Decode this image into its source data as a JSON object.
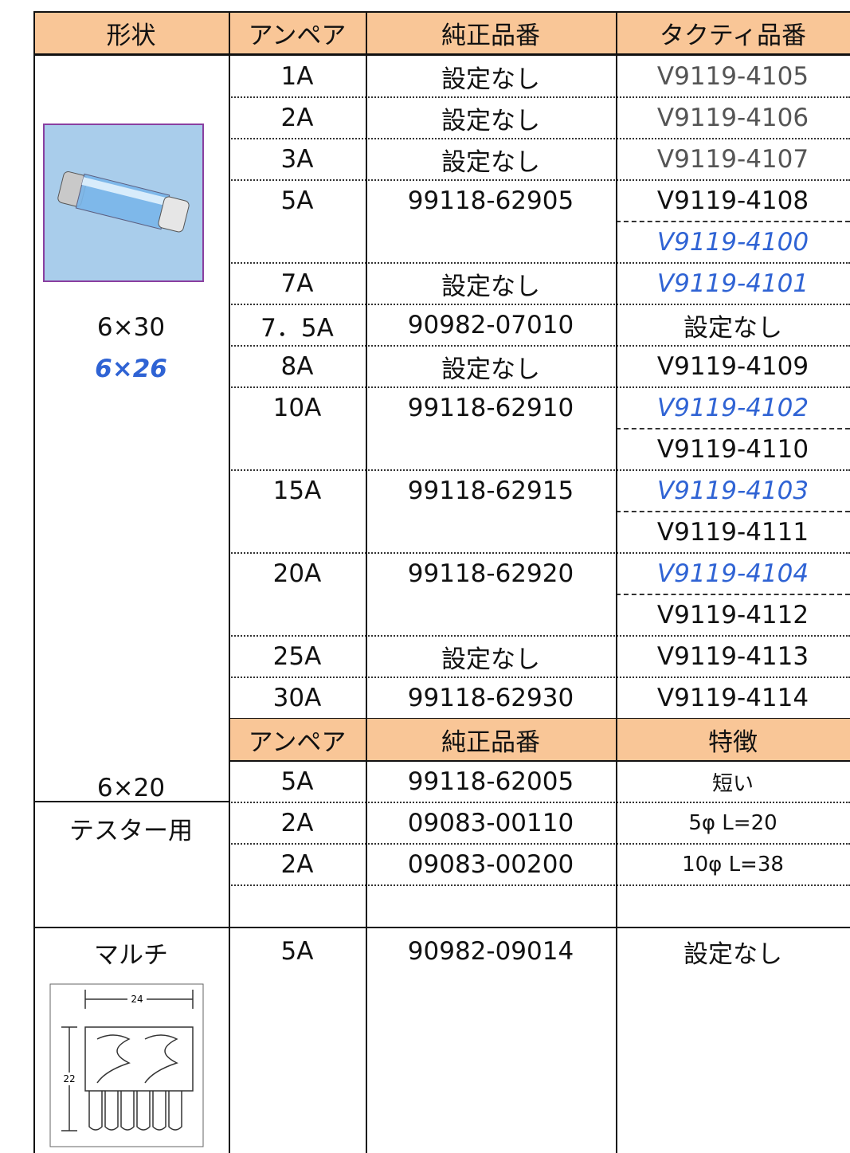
{
  "header": [
    "形状",
    "アンペア",
    "純正品番",
    "タクティ品番"
  ],
  "rows": [
    {
      "amp": "1A",
      "oem": "設定なし",
      "parts": [
        {
          "text": "V9119-4105",
          "color": "#555555"
        }
      ]
    },
    {
      "amp": "2A",
      "oem": "設定なし",
      "parts": [
        {
          "text": "V9119-4106",
          "color": "#555555"
        }
      ]
    },
    {
      "amp": "3A",
      "oem": "設定なし",
      "parts": [
        {
          "text": "V9119-4107",
          "color": "#555555"
        }
      ]
    },
    {
      "amp": "5A",
      "oem": "99118-62905",
      "parts": [
        {
          "text": "V9119-4108"
        },
        {
          "text": "V9119-4100",
          "color": "#2f63d4",
          "italic": true
        }
      ]
    },
    {
      "amp": "7A",
      "oem": "設定なし",
      "parts": [
        {
          "text": "V9119-4101",
          "color": "#2f63d4",
          "italic": true
        }
      ]
    },
    {
      "amp": "7．5A",
      "oem": "90982-07010",
      "parts": [
        {
          "text": "設定なし"
        }
      ]
    },
    {
      "amp": "8A",
      "oem": "設定なし",
      "parts": [
        {
          "text": "V9119-4109"
        }
      ]
    },
    {
      "amp": "10A",
      "oem": "99118-62910",
      "parts": [
        {
          "text": "V9119-4102",
          "color": "#2f63d4",
          "italic": true
        },
        {
          "text": "V9119-4110"
        }
      ]
    },
    {
      "amp": "15A",
      "oem": "99118-62915",
      "parts": [
        {
          "text": "V9119-4103",
          "color": "#2f63d4",
          "italic": true
        },
        {
          "text": "V9119-4111"
        }
      ]
    },
    {
      "amp": "20A",
      "oem": "99118-62920",
      "parts": [
        {
          "text": "V9119-4104",
          "color": "#2f63d4",
          "italic": true
        },
        {
          "text": "V9119-4112"
        }
      ]
    },
    {
      "amp": "25A",
      "oem": "設定なし",
      "parts": [
        {
          "text": "V9119-4113"
        }
      ]
    },
    {
      "amp": "30A",
      "oem": "99118-62930",
      "parts": [
        {
          "text": "V9119-4114"
        }
      ]
    }
  ],
  "shapes": {
    "fuse_30": "6×30",
    "fuse_26": "6×26",
    "fuse_20": "6×20",
    "tester": "テスター用",
    "multi": "マルチ"
  },
  "lower": {
    "header": [
      "アンペア",
      "純正品番",
      "特徴"
    ],
    "rows": [
      {
        "amp": "5A",
        "oem": "99118-62005",
        "feature": "短い"
      },
      {
        "amp": "2A",
        "oem": "09083-00110",
        "feature": "5φ L=20"
      },
      {
        "amp": "2A",
        "oem": "09083-00200",
        "feature": "10φ L=38"
      }
    ]
  },
  "multi": {
    "amp": "5A",
    "oem": "90982-09014",
    "tacty": "設定なし",
    "dim_width": "24",
    "dim_height": "22"
  }
}
